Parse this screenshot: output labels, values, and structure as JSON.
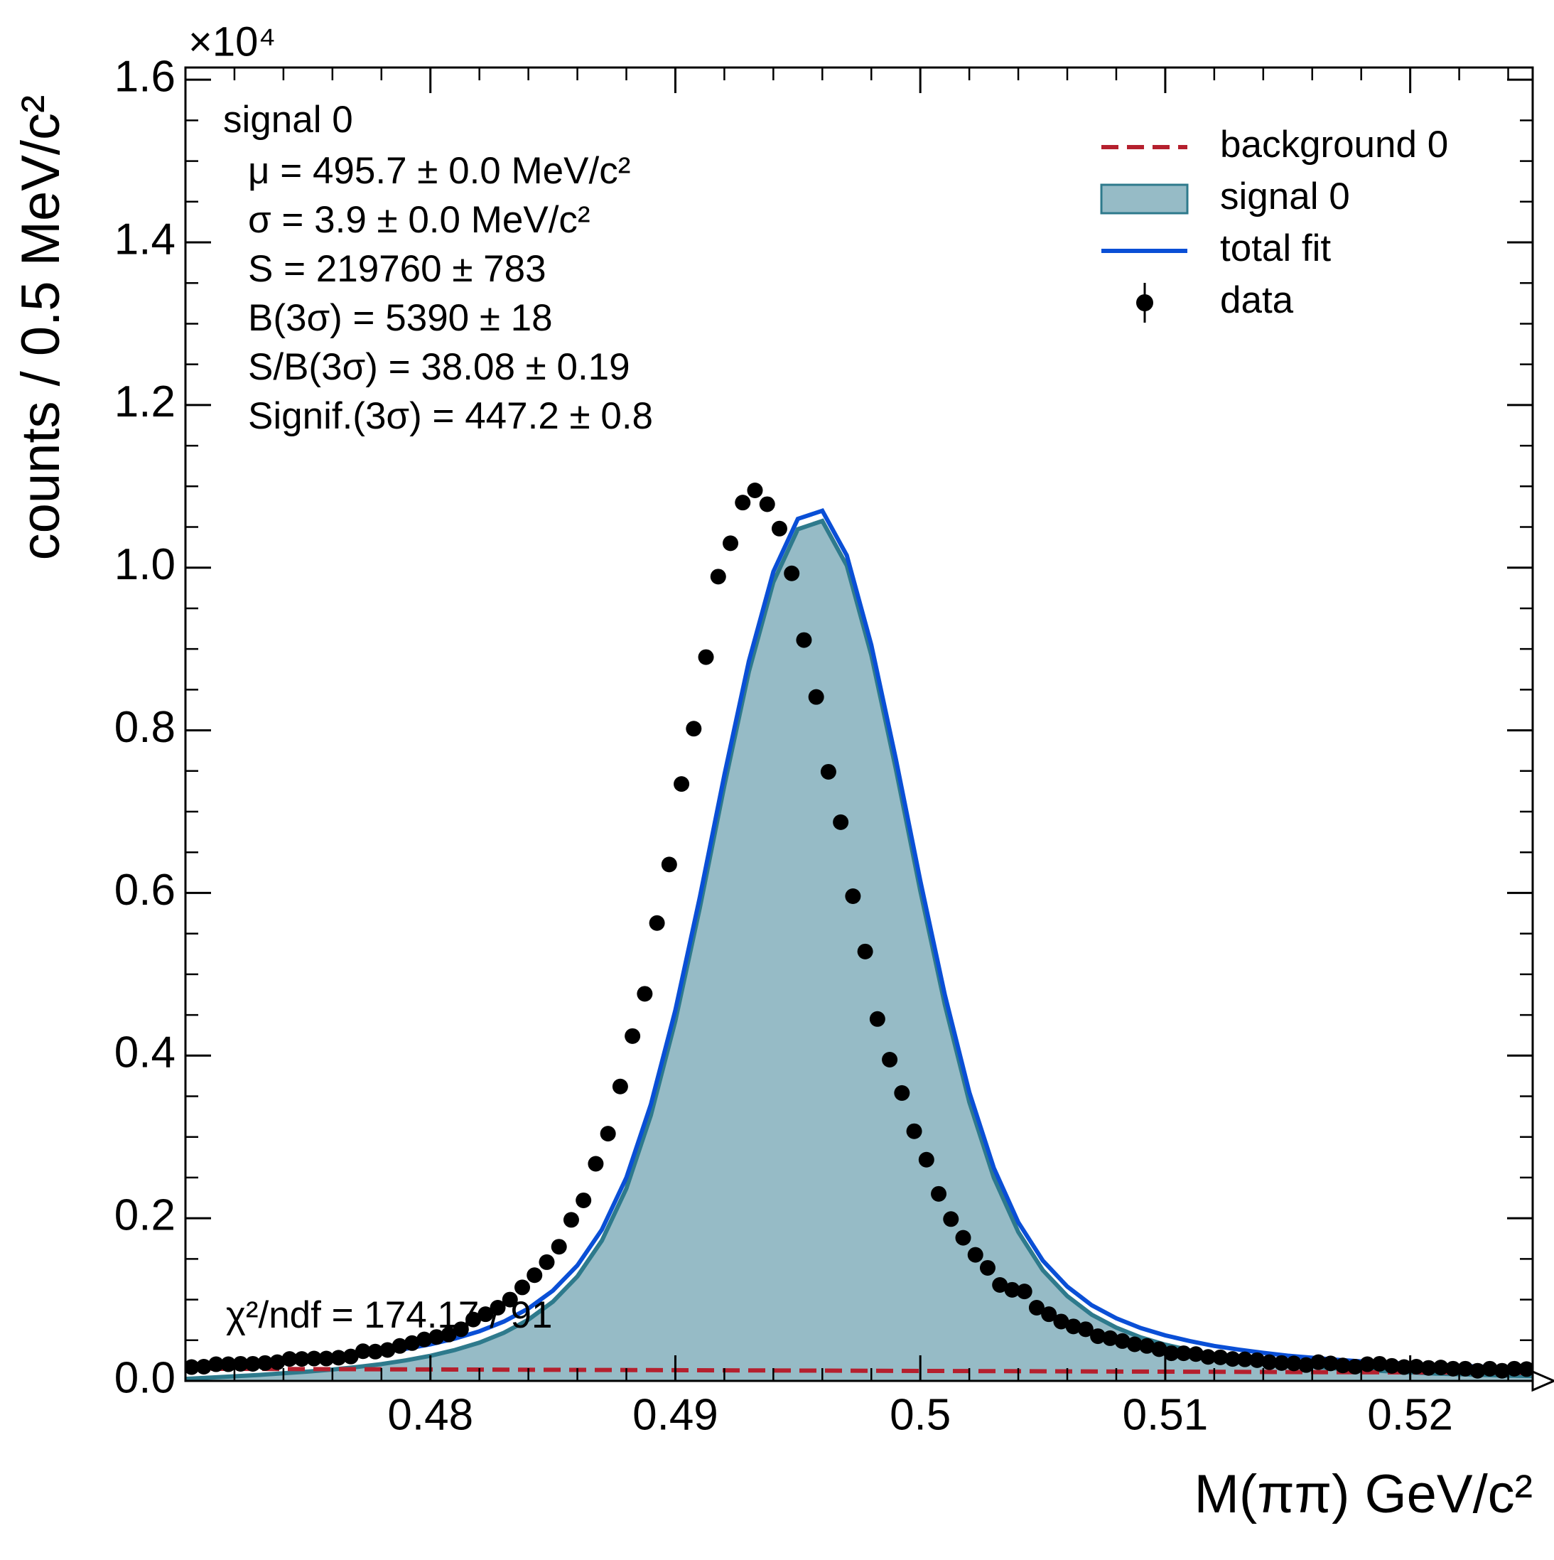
{
  "chart_data": {
    "type": "fit",
    "xlabel": "M(ππ) GeV/c²",
    "ylabel": "counts / 0.5 MeV/c²",
    "y_offset_label": "×10⁴",
    "xlim": [
      0.47,
      0.525
    ],
    "ylim": [
      0,
      16150
    ],
    "xticks": [
      0.48,
      0.49,
      0.5,
      0.51,
      0.52
    ],
    "yticks": [
      {
        "value": 0,
        "label": "0.0"
      },
      {
        "value": 2000,
        "label": "0.2"
      },
      {
        "value": 4000,
        "label": "0.4"
      },
      {
        "value": 6000,
        "label": "0.6"
      },
      {
        "value": 8000,
        "label": "0.8"
      },
      {
        "value": 10000,
        "label": "1.0"
      },
      {
        "value": 12000,
        "label": "1.2"
      },
      {
        "value": 14000,
        "label": "1.4"
      },
      {
        "value": 16000,
        "label": "1.6"
      }
    ],
    "xminorticks": [
      0.472,
      0.474,
      0.476,
      0.478,
      0.482,
      0.484,
      0.486,
      0.488,
      0.492,
      0.494,
      0.496,
      0.498,
      0.502,
      0.504,
      0.506,
      0.508,
      0.512,
      0.514,
      0.516,
      0.518,
      0.522,
      0.524
    ],
    "yminorticks": [
      500,
      1000,
      1500,
      2500,
      3000,
      3500,
      4500,
      5000,
      5500,
      6500,
      7000,
      7500,
      8500,
      9000,
      9500,
      10500,
      11000,
      11500,
      12500,
      13000,
      13500,
      14500,
      15000,
      15500
    ],
    "legend": "upper right",
    "annotation_title": "signal 0",
    "annotations": [
      "μ = 495.7 ± 0.0 MeV/c²",
      "σ = 3.9 ± 0.0 MeV/c²",
      "S = 219760 ± 783",
      "B(3σ) = 5390 ± 18",
      "S/B(3σ) = 38.08 ± 0.19",
      "Signif.(3σ) = 447.2 ± 0.8"
    ],
    "chi2_label": "χ²/ndf = 174.17 / 91",
    "series": [
      {
        "name": "background 0",
        "style": "dashed",
        "color": "#b5202e",
        "x": [
          0.47,
          0.525
        ],
        "values": [
          150,
          100
        ]
      },
      {
        "name": "signal 0",
        "style": "fill",
        "color": "#96bbc6",
        "edgecolor": "#2e7a8c",
        "x": [
          0.47,
          0.471,
          0.472,
          0.473,
          0.474,
          0.475,
          0.476,
          0.477,
          0.478,
          0.479,
          0.48,
          0.481,
          0.482,
          0.483,
          0.484,
          0.485,
          0.486,
          0.487,
          0.488,
          0.489,
          0.49,
          0.491,
          0.492,
          0.493,
          0.494,
          0.495,
          0.496,
          0.497,
          0.498,
          0.499,
          0.5,
          0.501,
          0.502,
          0.503,
          0.504,
          0.505,
          0.506,
          0.507,
          0.508,
          0.509,
          0.51,
          0.511,
          0.512,
          0.513,
          0.514,
          0.515,
          0.516,
          0.517,
          0.518,
          0.519,
          0.52,
          0.521,
          0.522,
          0.523,
          0.524,
          0.525
        ],
        "values": [
          25,
          41,
          57,
          73,
          94,
          115,
          140,
          171,
          207,
          253,
          309,
          380,
          471,
          592,
          753,
          974,
          1285,
          1725,
          2366,
          3267,
          4428,
          5819,
          7320,
          8721,
          9822,
          10473,
          10574,
          10025,
          8925,
          7526,
          6027,
          4628,
          3429,
          2500,
          1831,
          1362,
          1043,
          814,
          655,
          535,
          446,
          377,
          318,
          274,
          235,
          201,
          177,
          153,
          134,
          120,
          105,
          91,
          82,
          73,
          64,
          60
        ]
      },
      {
        "name": "total fit",
        "style": "line",
        "color": "#0a4fd6",
        "x": [
          0.47,
          0.471,
          0.472,
          0.473,
          0.474,
          0.475,
          0.476,
          0.477,
          0.478,
          0.479,
          0.48,
          0.481,
          0.482,
          0.483,
          0.484,
          0.485,
          0.486,
          0.487,
          0.488,
          0.489,
          0.49,
          0.491,
          0.492,
          0.493,
          0.494,
          0.495,
          0.496,
          0.497,
          0.498,
          0.499,
          0.5,
          0.501,
          0.502,
          0.503,
          0.504,
          0.505,
          0.506,
          0.507,
          0.508,
          0.509,
          0.51,
          0.511,
          0.512,
          0.513,
          0.514,
          0.515,
          0.516,
          0.517,
          0.518,
          0.519,
          0.52,
          0.521,
          0.522,
          0.523,
          0.524,
          0.525
        ],
        "values": [
          175,
          190,
          205,
          220,
          240,
          260,
          285,
          315,
          350,
          395,
          450,
          520,
          610,
          730,
          890,
          1110,
          1420,
          1860,
          2500,
          3400,
          4560,
          5950,
          7450,
          8850,
          9950,
          10600,
          10700,
          10150,
          9050,
          7650,
          6150,
          4750,
          3550,
          2620,
          1950,
          1480,
          1160,
          930,
          770,
          650,
          560,
          490,
          430,
          385,
          345,
          310,
          285,
          260,
          240,
          225,
          210,
          195,
          185,
          175,
          165,
          160
        ]
      },
      {
        "name": "data",
        "style": "points",
        "color": "#000000",
        "x": [
          0.47025,
          0.47075,
          0.47125,
          0.47175,
          0.47225,
          0.47275,
          0.47325,
          0.47375,
          0.47425,
          0.47475,
          0.47525,
          0.47575,
          0.47625,
          0.47675,
          0.47725,
          0.47775,
          0.47825,
          0.47875,
          0.47925,
          0.47975,
          0.48025,
          0.48075,
          0.48125,
          0.48175,
          0.48225,
          0.48275,
          0.48325,
          0.48375,
          0.48425,
          0.48475,
          0.48525,
          0.48575,
          0.48625,
          0.48675,
          0.48725,
          0.48775,
          0.48825,
          0.48875,
          0.48925,
          0.48975,
          0.49025,
          0.49075,
          0.49125,
          0.49175,
          0.49225,
          0.49275,
          0.49325,
          0.49375,
          0.49425,
          0.49475,
          0.49525,
          0.49575,
          0.49625,
          0.49675,
          0.49725,
          0.49775,
          0.49825,
          0.49875,
          0.49925,
          0.49975,
          0.50025,
          0.50075,
          0.50125,
          0.50175,
          0.50225,
          0.50275,
          0.50325,
          0.50375,
          0.50425,
          0.50475,
          0.50525,
          0.50575,
          0.50625,
          0.50675,
          0.50725,
          0.50775,
          0.50825,
          0.50875,
          0.50925,
          0.50975,
          0.51025,
          0.51075,
          0.51125,
          0.51175,
          0.51225,
          0.51275,
          0.51325,
          0.51375,
          0.51425,
          0.51475,
          0.51525,
          0.51575,
          0.51625,
          0.51675,
          0.51725,
          0.51775,
          0.51825,
          0.51875,
          0.51925,
          0.51975,
          0.52025,
          0.52075,
          0.52125,
          0.52175,
          0.52225,
          0.52275,
          0.52325,
          0.52375,
          0.52425,
          0.52475
        ],
        "values": [
          170,
          175,
          205,
          205,
          210,
          210,
          220,
          230,
          270,
          270,
          275,
          275,
          285,
          300,
          365,
          360,
          380,
          430,
          465,
          510,
          540,
          570,
          635,
          755,
          820,
          900,
          1000,
          1150,
          1300,
          1460,
          1650,
          1980,
          2220,
          2670,
          3040,
          3620,
          4240,
          4760,
          5630,
          6350,
          7340,
          8020,
          8900,
          9890,
          10300,
          10800,
          10950,
          10780,
          10480,
          9930,
          9110,
          8410,
          7490,
          6870,
          5960,
          5280,
          4450,
          3950,
          3540,
          3070,
          2720,
          2300,
          1990,
          1760,
          1550,
          1390,
          1180,
          1120,
          1100,
          900,
          820,
          730,
          670,
          635,
          550,
          525,
          490,
          450,
          430,
          390,
          340,
          340,
          330,
          295,
          290,
          270,
          265,
          255,
          230,
          220,
          215,
          195,
          230,
          215,
          190,
          175,
          205,
          210,
          185,
          170,
          175,
          160,
          165,
          150,
          150,
          125,
          150,
          125,
          150,
          145
        ]
      }
    ]
  }
}
